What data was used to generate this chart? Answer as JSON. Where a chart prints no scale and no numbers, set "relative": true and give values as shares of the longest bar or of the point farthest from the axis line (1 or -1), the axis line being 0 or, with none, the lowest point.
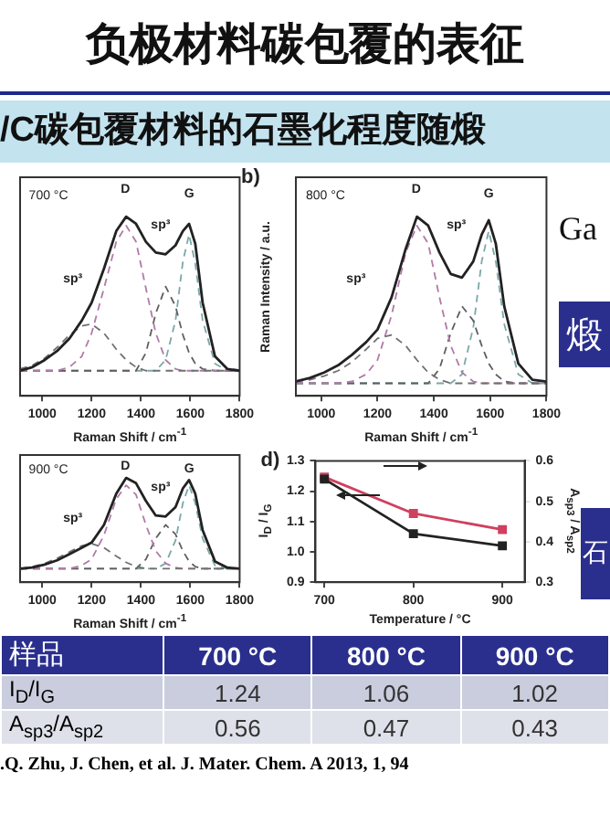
{
  "chart_data": [
    {
      "type": "other",
      "title": "负极材料碳包覆的表征",
      "subtitle": "/C碳包覆材料的石墨化程度随煅",
      "annotations": [
        "Ga",
        "煅",
        "石"
      ]
    },
    {
      "type": "line",
      "relative": true,
      "marker": "none",
      "xlabel": "Raman Shift / cm$^{-1}$",
      "xlim": [
        910,
        1800
      ],
      "xticks": [
        1000,
        1200,
        1400,
        1600,
        1800
      ],
      "x": [
        910,
        960,
        1010,
        1060,
        1110,
        1160,
        1200,
        1250,
        1300,
        1340,
        1380,
        1420,
        1460,
        1500,
        1540,
        1570,
        1595,
        1620,
        1650,
        1700,
        1750,
        1800
      ],
      "series": [
        {
          "color": "#222222",
          "line_style": "solid",
          "values": [
            0.14,
            0.16,
            0.2,
            0.25,
            0.32,
            0.42,
            0.52,
            0.71,
            0.92,
            1.0,
            0.96,
            0.86,
            0.8,
            0.79,
            0.84,
            0.92,
            0.96,
            0.85,
            0.52,
            0.22,
            0.15,
            0.14
          ]
        },
        {
          "color": "#707070",
          "line_style": "dashed",
          "values": [
            0.15,
            0.17,
            0.21,
            0.27,
            0.34,
            0.39,
            0.4,
            0.35,
            0.26,
            0.2,
            0.16,
            0.14,
            0.14,
            0.14,
            0.14,
            0.14,
            0.14,
            0.14,
            0.14,
            0.14,
            0.14,
            0.14
          ]
        },
        {
          "color": "#b07aa8",
          "line_style": "dashed",
          "values": [
            0.14,
            0.14,
            0.14,
            0.14,
            0.16,
            0.22,
            0.35,
            0.6,
            0.86,
            0.95,
            0.86,
            0.6,
            0.35,
            0.2,
            0.15,
            0.14,
            0.14,
            0.14,
            0.14,
            0.14,
            0.14,
            0.14
          ]
        },
        {
          "color": "#5e5e5e",
          "line_style": "dashed",
          "values": [
            0.14,
            0.14,
            0.14,
            0.14,
            0.14,
            0.14,
            0.14,
            0.14,
            0.14,
            0.14,
            0.14,
            0.24,
            0.46,
            0.61,
            0.5,
            0.34,
            0.24,
            0.18,
            0.15,
            0.14,
            0.14,
            0.14
          ]
        },
        {
          "color": "#7aa8a8",
          "line_style": "dashed",
          "values": [
            0.14,
            0.14,
            0.14,
            0.14,
            0.14,
            0.14,
            0.14,
            0.14,
            0.14,
            0.14,
            0.14,
            0.14,
            0.14,
            0.2,
            0.42,
            0.75,
            0.9,
            0.74,
            0.42,
            0.18,
            0.14,
            0.14
          ]
        }
      ],
      "annotations": [
        "700 °C",
        "D",
        "G",
        "sp³",
        "sp³"
      ]
    },
    {
      "type": "line",
      "relative": true,
      "marker": "none",
      "title": "b)",
      "xlabel": "Raman Shift / cm$^{-1}$",
      "ylabel": "Raman Intensity / a.u.",
      "xlim": [
        910,
        1800
      ],
      "xticks": [
        1000,
        1200,
        1400,
        1600,
        1800
      ],
      "x": [
        910,
        960,
        1010,
        1060,
        1110,
        1160,
        1200,
        1250,
        1300,
        1340,
        1380,
        1420,
        1460,
        1500,
        1540,
        1570,
        1595,
        1620,
        1650,
        1700,
        1750,
        1800
      ],
      "series": [
        {
          "color": "#222222",
          "line_style": "solid",
          "values": [
            0.08,
            0.1,
            0.13,
            0.17,
            0.23,
            0.3,
            0.37,
            0.55,
            0.82,
            1.0,
            0.95,
            0.8,
            0.68,
            0.66,
            0.75,
            0.9,
            0.98,
            0.85,
            0.5,
            0.18,
            0.09,
            0.08
          ]
        },
        {
          "color": "#707070",
          "line_style": "dashed",
          "values": [
            0.08,
            0.09,
            0.11,
            0.14,
            0.19,
            0.26,
            0.32,
            0.34,
            0.28,
            0.2,
            0.13,
            0.09,
            0.07,
            0.07,
            0.07,
            0.07,
            0.07,
            0.07,
            0.07,
            0.07,
            0.07,
            0.07
          ]
        },
        {
          "color": "#b07aa8",
          "line_style": "dashed",
          "values": [
            0.07,
            0.07,
            0.07,
            0.07,
            0.08,
            0.12,
            0.2,
            0.45,
            0.8,
            0.95,
            0.85,
            0.55,
            0.28,
            0.13,
            0.08,
            0.07,
            0.07,
            0.07,
            0.07,
            0.07,
            0.07,
            0.07
          ]
        },
        {
          "color": "#5e5e5e",
          "line_style": "dashed",
          "values": [
            0.07,
            0.07,
            0.07,
            0.07,
            0.07,
            0.07,
            0.07,
            0.07,
            0.07,
            0.07,
            0.07,
            0.15,
            0.35,
            0.5,
            0.42,
            0.28,
            0.18,
            0.12,
            0.08,
            0.07,
            0.07,
            0.07
          ]
        },
        {
          "color": "#7aa8a8",
          "line_style": "dashed",
          "values": [
            0.07,
            0.07,
            0.07,
            0.07,
            0.07,
            0.07,
            0.07,
            0.07,
            0.07,
            0.07,
            0.07,
            0.07,
            0.07,
            0.12,
            0.38,
            0.75,
            0.92,
            0.75,
            0.4,
            0.12,
            0.07,
            0.07
          ]
        }
      ],
      "annotations": [
        "800 °C",
        "D",
        "G",
        "sp³",
        "sp³"
      ]
    },
    {
      "type": "line",
      "relative": true,
      "marker": "none",
      "xlabel": "Raman Shift / cm$^{-1}$",
      "xlim": [
        910,
        1800
      ],
      "xticks": [
        1000,
        1200,
        1400,
        1600,
        1800
      ],
      "x": [
        910,
        960,
        1010,
        1060,
        1110,
        1160,
        1200,
        1250,
        1300,
        1340,
        1380,
        1420,
        1460,
        1500,
        1540,
        1570,
        1595,
        1620,
        1650,
        1700,
        1750,
        1800
      ],
      "series": [
        {
          "color": "#222222",
          "line_style": "solid",
          "values": [
            0.13,
            0.14,
            0.17,
            0.21,
            0.27,
            0.33,
            0.38,
            0.55,
            0.85,
            1.0,
            0.95,
            0.78,
            0.64,
            0.63,
            0.72,
            0.9,
            0.98,
            0.85,
            0.5,
            0.2,
            0.14,
            0.13
          ]
        },
        {
          "color": "#707070",
          "line_style": "dashed",
          "values": [
            0.13,
            0.15,
            0.18,
            0.23,
            0.29,
            0.35,
            0.37,
            0.33,
            0.25,
            0.19,
            0.15,
            0.13,
            0.13,
            0.13,
            0.13,
            0.13,
            0.13,
            0.13,
            0.13,
            0.13,
            0.13,
            0.13
          ]
        },
        {
          "color": "#b07aa8",
          "line_style": "dashed",
          "values": [
            0.13,
            0.13,
            0.13,
            0.13,
            0.13,
            0.16,
            0.22,
            0.45,
            0.8,
            0.93,
            0.84,
            0.55,
            0.3,
            0.18,
            0.14,
            0.13,
            0.13,
            0.13,
            0.13,
            0.13,
            0.13,
            0.13
          ]
        },
        {
          "color": "#5e5e5e",
          "line_style": "dashed",
          "values": [
            0.13,
            0.13,
            0.13,
            0.13,
            0.13,
            0.13,
            0.13,
            0.13,
            0.13,
            0.13,
            0.13,
            0.22,
            0.42,
            0.55,
            0.46,
            0.3,
            0.2,
            0.15,
            0.13,
            0.13,
            0.13,
            0.13
          ]
        },
        {
          "color": "#7aa8a8",
          "line_style": "dashed",
          "values": [
            0.13,
            0.13,
            0.13,
            0.13,
            0.13,
            0.13,
            0.13,
            0.13,
            0.13,
            0.13,
            0.13,
            0.13,
            0.13,
            0.18,
            0.4,
            0.76,
            0.93,
            0.76,
            0.42,
            0.16,
            0.13,
            0.13
          ]
        }
      ],
      "annotations": [
        "900 °C",
        "D",
        "G",
        "sp³",
        "sp³"
      ]
    },
    {
      "type": "line",
      "title": "d)",
      "marker": "square",
      "line_style": "solid",
      "xlabel": "Temperature / °C",
      "ylabel": "I$_{D}$ / I$_{G}$",
      "y2label": "A$_{sp3}$ / A$_{sp2}$",
      "x": [
        700,
        800,
        900
      ],
      "xlim": [
        690,
        925
      ],
      "xticks": [
        700,
        800,
        900
      ],
      "ylim": [
        0.9,
        1.3
      ],
      "yticks": [
        0.9,
        {
          "value": 1,
          "label": "1.0"
        },
        1.1,
        1.2,
        1.3
      ],
      "y2lim": [
        0.3,
        0.6
      ],
      "y2ticks": [
        0.3,
        0.4,
        0.5,
        0.6
      ],
      "series": [
        {
          "color": "#222222",
          "values": [
            1.24,
            1.06,
            1.02
          ]
        },
        {
          "color": "#d0405f",
          "axis": "y2",
          "values": [
            0.56,
            0.47,
            0.43
          ]
        }
      ]
    },
    {
      "type": "other",
      "categories": [
        "700 °C",
        "800 °C",
        "900 °C"
      ],
      "data_labels": true,
      "series": [
        {
          "name": "I$_{D}$/I$_{G}$",
          "values": [
            1.24,
            1.06,
            1.02
          ]
        },
        {
          "name": "A$_{sp3}$/A$_{sp2}$",
          "values": [
            0.56,
            0.47,
            0.43
          ]
        }
      ],
      "annotations": [
        "样品",
        ".Q. Zhu, J. Chen, et al.  J. Mater. Chem. A  2013, 1, 94"
      ]
    }
  ]
}
